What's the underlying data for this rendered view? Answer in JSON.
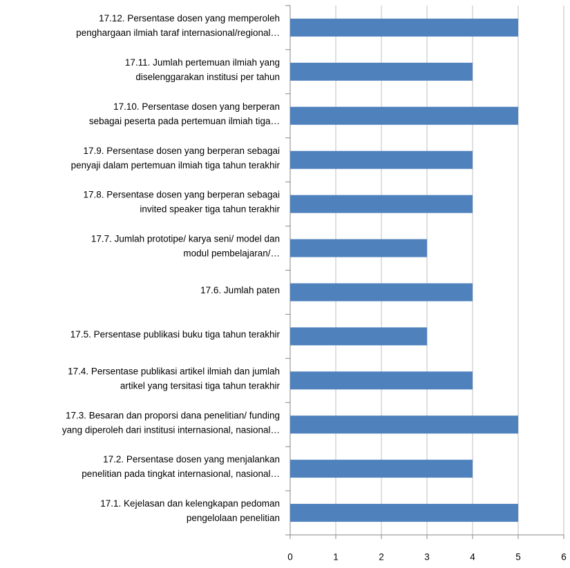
{
  "chart_data": {
    "type": "barh",
    "categories": [
      [
        "17.12. Persentase dosen yang memperoleh",
        "penghargaan  ilmiah  taraf internasional/regional…"
      ],
      [
        "17.11. Jumlah  pertemuan  ilmiah  yang",
        "diselenggarakan  institusi  per tahun"
      ],
      [
        "17.10. Persentase dosen yang berperan",
        "sebagai  peserta  pada pertemuan ilmiah tiga…"
      ],
      [
        "17.9. Persentase dosen yang berperan sebagai",
        "penyaji dalam pertemuan ilmiah tiga tahun terakhir"
      ],
      [
        "17.8. Persentase dosen yang berperan sebagai",
        "invited speaker tiga tahun terakhir"
      ],
      [
        "17.7. Jumlah  prototipe/  karya  seni/  model  dan",
        "modul  pembelajaran/…"
      ],
      [
        "17.6. Jumlah paten"
      ],
      [
        "17.5. Persentase publikasi buku tiga tahun terakhir"
      ],
      [
        "17.4. Persentase publikasi artikel ilmiah dan jumlah",
        "artikel yang tersitasi tiga tahun terakhir"
      ],
      [
        "17.3. Besaran dan proporsi dana penelitian/ funding",
        "yang diperoleh dari institusi internasional, nasional…"
      ],
      [
        "17.2. Persentase dosen yang menjalankan",
        "penelitian pada tingkat internasional, nasional…"
      ],
      [
        "17.1. Kejelasan dan kelengkapan pedoman",
        "pengelolaan penelitian"
      ]
    ],
    "values": [
      5,
      4,
      5,
      4,
      4,
      3,
      4,
      3,
      4,
      5,
      4,
      5
    ],
    "color": "#4f81bd",
    "xlim": [
      0,
      6
    ],
    "xticks": [
      0,
      1,
      2,
      3,
      4,
      5,
      6
    ],
    "grid": true
  }
}
